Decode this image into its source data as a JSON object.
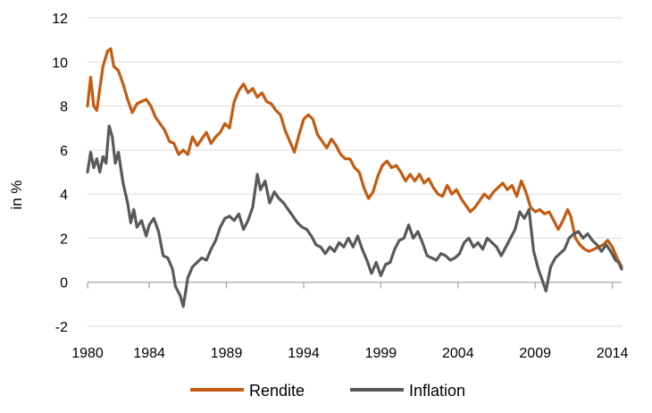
{
  "chart_data": {
    "type": "line",
    "title": "",
    "xlabel": "",
    "ylabel": "in %",
    "xlim": [
      1980,
      2014.6
    ],
    "ylim": [
      -2,
      12
    ],
    "yticks": [
      -2,
      0,
      2,
      4,
      6,
      8,
      10,
      12
    ],
    "xticks": [
      1980,
      1984,
      1989,
      1994,
      1999,
      2004,
      2009,
      2014
    ],
    "grid": "horizontal",
    "legend": "bottom",
    "series": [
      {
        "name": "Rendite",
        "color": "#C55A11",
        "points": [
          [
            1980.0,
            8.0
          ],
          [
            1980.2,
            9.3
          ],
          [
            1980.4,
            8.0
          ],
          [
            1980.6,
            7.8
          ],
          [
            1980.8,
            8.8
          ],
          [
            1981.0,
            9.8
          ],
          [
            1981.3,
            10.5
          ],
          [
            1981.5,
            10.6
          ],
          [
            1981.7,
            9.8
          ],
          [
            1982.0,
            9.6
          ],
          [
            1982.3,
            9.0
          ],
          [
            1982.6,
            8.3
          ],
          [
            1982.9,
            7.7
          ],
          [
            1983.2,
            8.1
          ],
          [
            1983.5,
            8.2
          ],
          [
            1983.8,
            8.3
          ],
          [
            1984.1,
            8.0
          ],
          [
            1984.4,
            7.5
          ],
          [
            1984.7,
            7.2
          ],
          [
            1985.0,
            6.9
          ],
          [
            1985.3,
            6.4
          ],
          [
            1985.6,
            6.3
          ],
          [
            1985.9,
            5.8
          ],
          [
            1986.2,
            6.0
          ],
          [
            1986.5,
            5.8
          ],
          [
            1986.8,
            6.6
          ],
          [
            1987.1,
            6.2
          ],
          [
            1987.4,
            6.5
          ],
          [
            1987.7,
            6.8
          ],
          [
            1988.0,
            6.3
          ],
          [
            1988.3,
            6.6
          ],
          [
            1988.6,
            6.8
          ],
          [
            1988.9,
            7.2
          ],
          [
            1989.2,
            7.0
          ],
          [
            1989.5,
            8.2
          ],
          [
            1989.8,
            8.7
          ],
          [
            1990.1,
            9.0
          ],
          [
            1990.4,
            8.6
          ],
          [
            1990.7,
            8.8
          ],
          [
            1991.0,
            8.4
          ],
          [
            1991.3,
            8.6
          ],
          [
            1991.6,
            8.2
          ],
          [
            1991.9,
            8.1
          ],
          [
            1992.2,
            7.8
          ],
          [
            1992.5,
            7.6
          ],
          [
            1992.8,
            6.9
          ],
          [
            1993.1,
            6.4
          ],
          [
            1993.4,
            5.9
          ],
          [
            1993.7,
            6.7
          ],
          [
            1994.0,
            7.4
          ],
          [
            1994.3,
            7.6
          ],
          [
            1994.6,
            7.4
          ],
          [
            1994.9,
            6.7
          ],
          [
            1995.2,
            6.4
          ],
          [
            1995.5,
            6.1
          ],
          [
            1995.8,
            6.5
          ],
          [
            1996.1,
            6.2
          ],
          [
            1996.4,
            5.8
          ],
          [
            1996.7,
            5.6
          ],
          [
            1997.0,
            5.6
          ],
          [
            1997.3,
            5.2
          ],
          [
            1997.6,
            5.0
          ],
          [
            1997.9,
            4.3
          ],
          [
            1998.2,
            3.8
          ],
          [
            1998.5,
            4.1
          ],
          [
            1998.8,
            4.8
          ],
          [
            1999.1,
            5.3
          ],
          [
            1999.4,
            5.5
          ],
          [
            1999.7,
            5.2
          ],
          [
            2000.0,
            5.3
          ],
          [
            2000.3,
            5.0
          ],
          [
            2000.6,
            4.6
          ],
          [
            2000.9,
            4.9
          ],
          [
            2001.2,
            4.6
          ],
          [
            2001.5,
            4.9
          ],
          [
            2001.8,
            4.5
          ],
          [
            2002.1,
            4.7
          ],
          [
            2002.4,
            4.3
          ],
          [
            2002.7,
            4.0
          ],
          [
            2003.0,
            3.9
          ],
          [
            2003.3,
            4.4
          ],
          [
            2003.6,
            4.0
          ],
          [
            2003.9,
            4.2
          ],
          [
            2004.2,
            3.8
          ],
          [
            2004.5,
            3.5
          ],
          [
            2004.8,
            3.2
          ],
          [
            2005.1,
            3.4
          ],
          [
            2005.4,
            3.7
          ],
          [
            2005.7,
            4.0
          ],
          [
            2006.0,
            3.8
          ],
          [
            2006.3,
            4.1
          ],
          [
            2006.6,
            4.3
          ],
          [
            2006.9,
            4.5
          ],
          [
            2007.2,
            4.2
          ],
          [
            2007.5,
            4.4
          ],
          [
            2007.8,
            3.9
          ],
          [
            2008.1,
            4.6
          ],
          [
            2008.4,
            4.1
          ],
          [
            2008.7,
            3.4
          ],
          [
            2009.0,
            3.2
          ],
          [
            2009.3,
            3.3
          ],
          [
            2009.6,
            3.1
          ],
          [
            2009.9,
            3.2
          ],
          [
            2010.2,
            2.8
          ],
          [
            2010.5,
            2.4
          ],
          [
            2010.8,
            2.8
          ],
          [
            2011.1,
            3.3
          ],
          [
            2011.3,
            3.0
          ],
          [
            2011.6,
            2.0
          ],
          [
            2011.9,
            1.7
          ],
          [
            2012.2,
            1.5
          ],
          [
            2012.5,
            1.4
          ],
          [
            2012.8,
            1.5
          ],
          [
            2013.1,
            1.6
          ],
          [
            2013.4,
            1.7
          ],
          [
            2013.7,
            1.9
          ],
          [
            2014.0,
            1.6
          ],
          [
            2014.3,
            1.1
          ],
          [
            2014.6,
            0.7
          ]
        ]
      },
      {
        "name": "Inflation",
        "color": "#595959",
        "points": [
          [
            1980.0,
            5.0
          ],
          [
            1980.2,
            5.9
          ],
          [
            1980.4,
            5.2
          ],
          [
            1980.6,
            5.6
          ],
          [
            1980.8,
            5.0
          ],
          [
            1981.0,
            5.7
          ],
          [
            1981.2,
            5.4
          ],
          [
            1981.4,
            7.1
          ],
          [
            1981.6,
            6.6
          ],
          [
            1981.8,
            5.4
          ],
          [
            1982.0,
            5.9
          ],
          [
            1982.3,
            4.5
          ],
          [
            1982.6,
            3.6
          ],
          [
            1982.8,
            2.7
          ],
          [
            1983.0,
            3.3
          ],
          [
            1983.2,
            2.5
          ],
          [
            1983.5,
            2.8
          ],
          [
            1983.8,
            2.1
          ],
          [
            1984.0,
            2.6
          ],
          [
            1984.3,
            2.9
          ],
          [
            1984.6,
            2.3
          ],
          [
            1984.9,
            1.2
          ],
          [
            1985.2,
            1.1
          ],
          [
            1985.5,
            0.6
          ],
          [
            1985.7,
            -0.2
          ],
          [
            1986.0,
            -0.6
          ],
          [
            1986.2,
            -1.1
          ],
          [
            1986.5,
            0.2
          ],
          [
            1986.8,
            0.7
          ],
          [
            1987.1,
            0.9
          ],
          [
            1987.4,
            1.1
          ],
          [
            1987.7,
            1.0
          ],
          [
            1988.0,
            1.5
          ],
          [
            1988.3,
            1.9
          ],
          [
            1988.6,
            2.5
          ],
          [
            1988.9,
            2.9
          ],
          [
            1989.2,
            3.0
          ],
          [
            1989.5,
            2.8
          ],
          [
            1989.8,
            3.1
          ],
          [
            1990.1,
            2.4
          ],
          [
            1990.4,
            2.8
          ],
          [
            1990.7,
            3.4
          ],
          [
            1991.0,
            4.9
          ],
          [
            1991.2,
            4.2
          ],
          [
            1991.5,
            4.6
          ],
          [
            1991.8,
            3.6
          ],
          [
            1992.1,
            4.1
          ],
          [
            1992.4,
            3.8
          ],
          [
            1992.7,
            3.6
          ],
          [
            1993.0,
            3.3
          ],
          [
            1993.3,
            3.0
          ],
          [
            1993.6,
            2.7
          ],
          [
            1993.9,
            2.5
          ],
          [
            1994.2,
            2.4
          ],
          [
            1994.5,
            2.1
          ],
          [
            1994.8,
            1.7
          ],
          [
            1995.1,
            1.6
          ],
          [
            1995.4,
            1.3
          ],
          [
            1995.7,
            1.6
          ],
          [
            1996.0,
            1.4
          ],
          [
            1996.3,
            1.8
          ],
          [
            1996.6,
            1.6
          ],
          [
            1996.9,
            2.0
          ],
          [
            1997.2,
            1.6
          ],
          [
            1997.5,
            2.1
          ],
          [
            1997.8,
            1.5
          ],
          [
            1998.1,
            1.0
          ],
          [
            1998.4,
            0.4
          ],
          [
            1998.7,
            0.9
          ],
          [
            1999.0,
            0.3
          ],
          [
            1999.3,
            0.8
          ],
          [
            1999.6,
            0.9
          ],
          [
            1999.9,
            1.5
          ],
          [
            2000.2,
            1.9
          ],
          [
            2000.5,
            2.0
          ],
          [
            2000.8,
            2.6
          ],
          [
            2001.1,
            2.0
          ],
          [
            2001.4,
            2.3
          ],
          [
            2001.7,
            1.8
          ],
          [
            2002.0,
            1.2
          ],
          [
            2002.3,
            1.1
          ],
          [
            2002.6,
            1.0
          ],
          [
            2002.9,
            1.3
          ],
          [
            2003.2,
            1.2
          ],
          [
            2003.5,
            1.0
          ],
          [
            2003.8,
            1.1
          ],
          [
            2004.1,
            1.3
          ],
          [
            2004.4,
            1.8
          ],
          [
            2004.7,
            2.0
          ],
          [
            2005.0,
            1.6
          ],
          [
            2005.3,
            1.8
          ],
          [
            2005.6,
            1.5
          ],
          [
            2005.9,
            2.0
          ],
          [
            2006.2,
            1.8
          ],
          [
            2006.5,
            1.6
          ],
          [
            2006.8,
            1.2
          ],
          [
            2007.1,
            1.6
          ],
          [
            2007.4,
            2.0
          ],
          [
            2007.7,
            2.4
          ],
          [
            2008.0,
            3.2
          ],
          [
            2008.3,
            2.9
          ],
          [
            2008.6,
            3.3
          ],
          [
            2008.9,
            1.4
          ],
          [
            2009.2,
            0.6
          ],
          [
            2009.5,
            0.0
          ],
          [
            2009.7,
            -0.4
          ],
          [
            2010.0,
            0.7
          ],
          [
            2010.3,
            1.1
          ],
          [
            2010.6,
            1.3
          ],
          [
            2010.9,
            1.5
          ],
          [
            2011.2,
            2.0
          ],
          [
            2011.5,
            2.2
          ],
          [
            2011.8,
            2.3
          ],
          [
            2012.1,
            2.0
          ],
          [
            2012.4,
            2.2
          ],
          [
            2012.7,
            1.9
          ],
          [
            2013.0,
            1.7
          ],
          [
            2013.3,
            1.4
          ],
          [
            2013.6,
            1.7
          ],
          [
            2013.9,
            1.4
          ],
          [
            2014.2,
            1.0
          ],
          [
            2014.4,
            0.9
          ],
          [
            2014.6,
            0.6
          ]
        ]
      }
    ]
  }
}
